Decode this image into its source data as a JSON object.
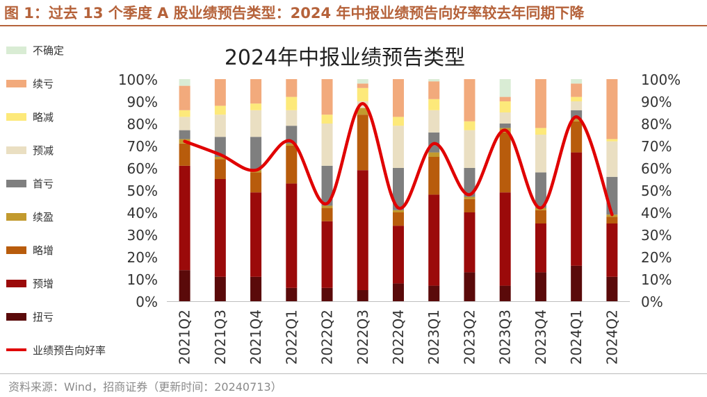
{
  "figure_title": "图 1：过去 13 个季度 A 股业绩预告类型：2024 年中报业绩预告向好率较去年同期下降",
  "source_note": "资料来源：Wind，招商证券（更新时间：20240713）",
  "chart_data": {
    "type": "bar",
    "stacked": true,
    "title": "2024年中报业绩预告类型",
    "categories": [
      "2021Q2",
      "2021Q3",
      "2021Q4",
      "2022Q1",
      "2022Q2",
      "2022Q3",
      "2022Q4",
      "2023Q1",
      "2023Q2",
      "2023Q3",
      "2023Q4",
      "2024Q1",
      "2024Q2"
    ],
    "y_ticks": [
      "0%",
      "10%",
      "20%",
      "30%",
      "40%",
      "50%",
      "60%",
      "70%",
      "80%",
      "90%",
      "100%"
    ],
    "ylim": [
      0,
      100
    ],
    "y_unit": "%",
    "grid": false,
    "legend_position": "left",
    "series": [
      {
        "name": "扭亏",
        "color": "#5a0a0a",
        "values": [
          14,
          11,
          11,
          6,
          6,
          5,
          8,
          7,
          13,
          7,
          13,
          16,
          11
        ]
      },
      {
        "name": "预增",
        "color": "#9b0a0a",
        "values": [
          47,
          44,
          38,
          47,
          30,
          54,
          26,
          41,
          27,
          42,
          22,
          51,
          24
        ]
      },
      {
        "name": "略增",
        "color": "#b85c0c",
        "values": [
          10,
          9,
          9,
          17,
          6,
          25,
          6,
          17,
          6,
          27,
          6,
          14,
          3
        ]
      },
      {
        "name": "续盈",
        "color": "#c29a2e",
        "values": [
          2,
          1,
          1,
          1,
          1,
          3,
          1,
          2,
          1,
          2,
          1,
          1,
          1
        ]
      },
      {
        "name": "首亏",
        "color": "#7f7f7f",
        "values": [
          4,
          9,
          15,
          8,
          18,
          0,
          19,
          9,
          13,
          2,
          16,
          4,
          17
        ]
      },
      {
        "name": "预减",
        "color": "#eadfc2",
        "values": [
          6,
          10,
          12,
          7,
          19,
          3,
          19,
          10,
          17,
          5,
          17,
          4,
          16
        ]
      },
      {
        "name": "略减",
        "color": "#fde97a",
        "values": [
          3,
          4,
          3,
          6,
          4,
          6,
          4,
          5,
          4,
          5,
          3,
          2,
          1
        ]
      },
      {
        "name": "续亏",
        "color": "#f2aa7c",
        "values": [
          11,
          12,
          11,
          8,
          16,
          2,
          17,
          8,
          19,
          2,
          22,
          6,
          27
        ]
      },
      {
        "name": "不确定",
        "color": "#d9ecd4",
        "values": [
          3,
          0,
          0,
          0,
          0,
          2,
          0,
          1,
          0,
          8,
          0,
          2,
          0
        ]
      }
    ],
    "line_series": {
      "name": "业绩预告向好率",
      "color": "#e00000",
      "values": [
        72,
        66,
        59,
        72,
        44,
        89,
        42,
        71,
        48,
        77,
        42,
        83,
        39
      ]
    }
  }
}
